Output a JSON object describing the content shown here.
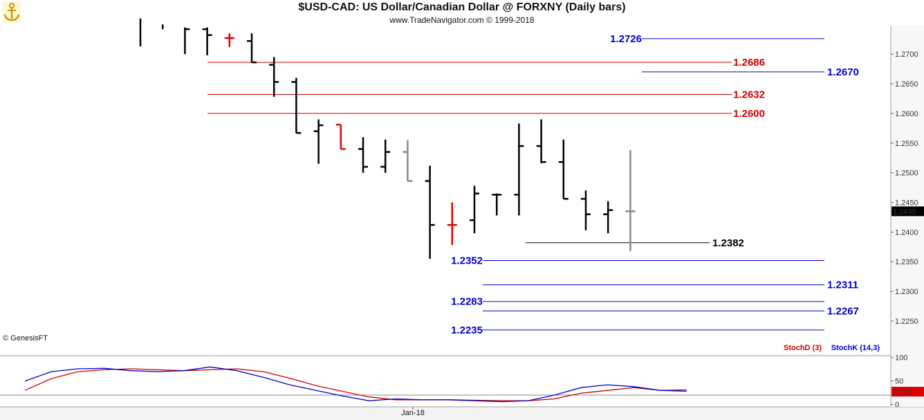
{
  "chart_data": {
    "type": "bar",
    "title": "$USD-CAD:  US Dollar/Canadian Dollar @ FORXNY  (Daily bars)",
    "subtitle": "www.TradeNavigator.com © 1999-2018",
    "copyright": "© GenesisFT",
    "x_label": "Jan-18",
    "y_ticks": [
      "1.2700",
      "1.2650",
      "1.2600",
      "1.2550",
      "1.2500",
      "1.2450",
      "1.2400",
      "1.2350",
      "1.2300",
      "1.2250"
    ],
    "y_tick_values": [
      1.27,
      1.265,
      1.26,
      1.255,
      1.25,
      1.245,
      1.24,
      1.235,
      1.23,
      1.225
    ],
    "ylim": [
      1.2208,
      1.2748
    ],
    "last_price": "1.2435",
    "bar_colors": {
      "up": "#000000",
      "red": "#e00000",
      "gray": "#888888"
    },
    "bars": [
      {
        "high": 1.276,
        "low": 1.2713,
        "open": null,
        "close": null,
        "color": "#000000"
      },
      {
        "high": 1.275,
        "low": 1.2742,
        "open": null,
        "close": null,
        "color": "#000000"
      },
      {
        "high": 1.2745,
        "low": 1.27,
        "open": null,
        "close": 1.2742,
        "color": "#000000"
      },
      {
        "high": 1.2745,
        "low": 1.2698,
        "open": 1.2742,
        "close": 1.2732,
        "color": "#000000"
      },
      {
        "high": 1.2735,
        "low": 1.2712,
        "open": 1.2727,
        "close": 1.2727,
        "color": "#e00000"
      },
      {
        "high": 1.2735,
        "low": 1.2686,
        "open": 1.2722,
        "close": 1.2686,
        "color": "#000000"
      },
      {
        "high": 1.2695,
        "low": 1.2628,
        "open": 1.2682,
        "close": 1.2653,
        "color": "#000000"
      },
      {
        "high": 1.266,
        "low": 1.2567,
        "open": 1.2653,
        "close": 1.2567,
        "color": "#000000"
      },
      {
        "high": 1.259,
        "low": 1.2515,
        "open": 1.257,
        "close": 1.258,
        "color": "#000000"
      },
      {
        "high": 1.2581,
        "low": 1.254,
        "open": 1.2581,
        "close": 1.254,
        "color": "#e00000"
      },
      {
        "high": 1.256,
        "low": 1.25,
        "open": 1.254,
        "close": 1.251,
        "color": "#000000"
      },
      {
        "high": 1.2556,
        "low": 1.25,
        "open": 1.251,
        "close": 1.2535,
        "color": "#000000"
      },
      {
        "high": 1.2555,
        "low": 1.2486,
        "open": 1.2535,
        "close": 1.2486,
        "color": "#888888"
      },
      {
        "high": 1.2512,
        "low": 1.2355,
        "open": 1.2486,
        "close": 1.2412,
        "color": "#000000"
      },
      {
        "high": 1.245,
        "low": 1.2378,
        "open": 1.2412,
        "close": 1.2412,
        "color": "#e00000"
      },
      {
        "high": 1.2478,
        "low": 1.2398,
        "open": 1.242,
        "close": 1.2465,
        "color": "#000000"
      },
      {
        "high": 1.2465,
        "low": 1.2428,
        "open": 1.2463,
        "close": 1.2463,
        "color": "#000000"
      },
      {
        "high": 1.2583,
        "low": 1.2428,
        "open": 1.2463,
        "close": 1.2545,
        "color": "#000000"
      },
      {
        "high": 1.259,
        "low": 1.2516,
        "open": 1.2545,
        "close": 1.2518,
        "color": "#000000"
      },
      {
        "high": 1.2556,
        "low": 1.2456,
        "open": 1.2518,
        "close": 1.2456,
        "color": "#000000"
      },
      {
        "high": 1.247,
        "low": 1.2403,
        "open": 1.2456,
        "close": 1.243,
        "color": "#000000"
      },
      {
        "high": 1.2452,
        "low": 1.2398,
        "open": 1.243,
        "close": 1.2437,
        "color": "#000000"
      },
      {
        "high": 1.2538,
        "low": 1.2368,
        "open": 1.2435,
        "close": 1.2435,
        "color": "#888888"
      }
    ],
    "levels": [
      {
        "label": "1.2726",
        "value": 1.2726,
        "color": "#0000cc",
        "x1": 928,
        "x2": 1192,
        "label_side": "left",
        "label_x": 928
      },
      {
        "label": "1.2686",
        "value": 1.2686,
        "color": "#cc0000",
        "x1": 300,
        "x2": 1058,
        "label_side": "right",
        "label_x": 1335
      },
      {
        "label": "1.2670",
        "value": 1.267,
        "color": "#0000cc",
        "x1": 928,
        "x2": 1192,
        "label_side": "right",
        "label_x": 1196
      },
      {
        "label": "1.2632",
        "value": 1.2632,
        "color": "#cc0000",
        "x1": 300,
        "x2": 1058,
        "label_side": "right",
        "label_x": 1335
      },
      {
        "label": "1.2600",
        "value": 1.26,
        "color": "#cc0000",
        "x1": 300,
        "x2": 1058,
        "label_side": "right",
        "label_x": 1335
      },
      {
        "label": "1.2382",
        "value": 1.2382,
        "color": "#000000",
        "x1": 760,
        "x2": 1026,
        "label_side": "right",
        "label_x": 1030
      },
      {
        "label": "1.2352",
        "value": 1.2352,
        "color": "#0000cc",
        "x1": 698,
        "x2": 1192,
        "label_side": "left",
        "label_x": 698
      },
      {
        "label": "1.2311",
        "value": 1.2311,
        "color": "#0000cc",
        "x1": 698,
        "x2": 1192,
        "label_side": "right",
        "label_x": 1196
      },
      {
        "label": "1.2283",
        "value": 1.2283,
        "color": "#0000cc",
        "x1": 698,
        "x2": 1192,
        "label_side": "left",
        "label_x": 698
      },
      {
        "label": "1.2267",
        "value": 1.2267,
        "color": "#0000cc",
        "x1": 698,
        "x2": 1192,
        "label_side": "right",
        "label_x": 1196
      },
      {
        "label": "1.2235",
        "value": 1.2235,
        "color": "#0000cc",
        "x1": 698,
        "x2": 1192,
        "label_side": "left",
        "label_x": 698
      }
    ],
    "stochastic": {
      "labels": {
        "d": "StochD (3)",
        "k": "StochK (14,3)"
      },
      "last_value": "27.38",
      "y_ticks": [
        "100",
        "50",
        "0"
      ],
      "y_tick_values": [
        100,
        50,
        0
      ],
      "ylim": [
        -5,
        104
      ],
      "overbought": 80,
      "oversold": 20,
      "k": [
        50,
        70,
        76,
        77,
        72,
        70,
        72,
        80,
        72,
        58,
        42,
        30,
        18,
        8,
        12,
        10,
        10,
        8,
        6,
        8,
        20,
        36,
        42,
        38,
        30,
        31
      ],
      "d": [
        30,
        55,
        70,
        74,
        76,
        74,
        72,
        74,
        76,
        70,
        56,
        40,
        28,
        16,
        10,
        10,
        10,
        9,
        8,
        8,
        12,
        24,
        30,
        36,
        30,
        28
      ],
      "k_color": "#0000cc",
      "d_color": "#cc0000"
    }
  }
}
